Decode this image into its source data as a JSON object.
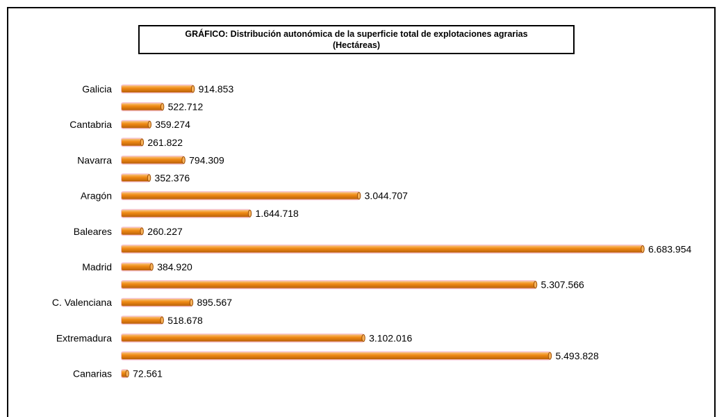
{
  "chart_data": {
    "type": "bar",
    "orientation": "horizontal",
    "title": "GRÁFICO: Distribución autonómica de la superficie total de explotaciones agrarias",
    "subtitle": "(Hectáreas)",
    "categories_labeled": [
      "Galicia",
      "Cantabria",
      "Navarra",
      "Aragón",
      "Baleares",
      "Madrid",
      "C. Valenciana",
      "Extremadura",
      "Canarias"
    ],
    "values": [
      914853,
      522712,
      359274,
      261822,
      794309,
      352376,
      3044707,
      1644718,
      260227,
      6683954,
      384920,
      5307566,
      895567,
      518678,
      3102016,
      5493828,
      72561
    ],
    "value_labels": [
      "914.853",
      "522.712",
      "359.274",
      "261.822",
      "794.309",
      "352.376",
      "3.044.707",
      "1.644.718",
      "260.227",
      "6.683.954",
      "384.920",
      "5.307.566",
      "895.567",
      "518.678",
      "3.102.016",
      "5.493.828",
      "72.561"
    ],
    "bar_color": "#f08a14",
    "grid": false
  }
}
